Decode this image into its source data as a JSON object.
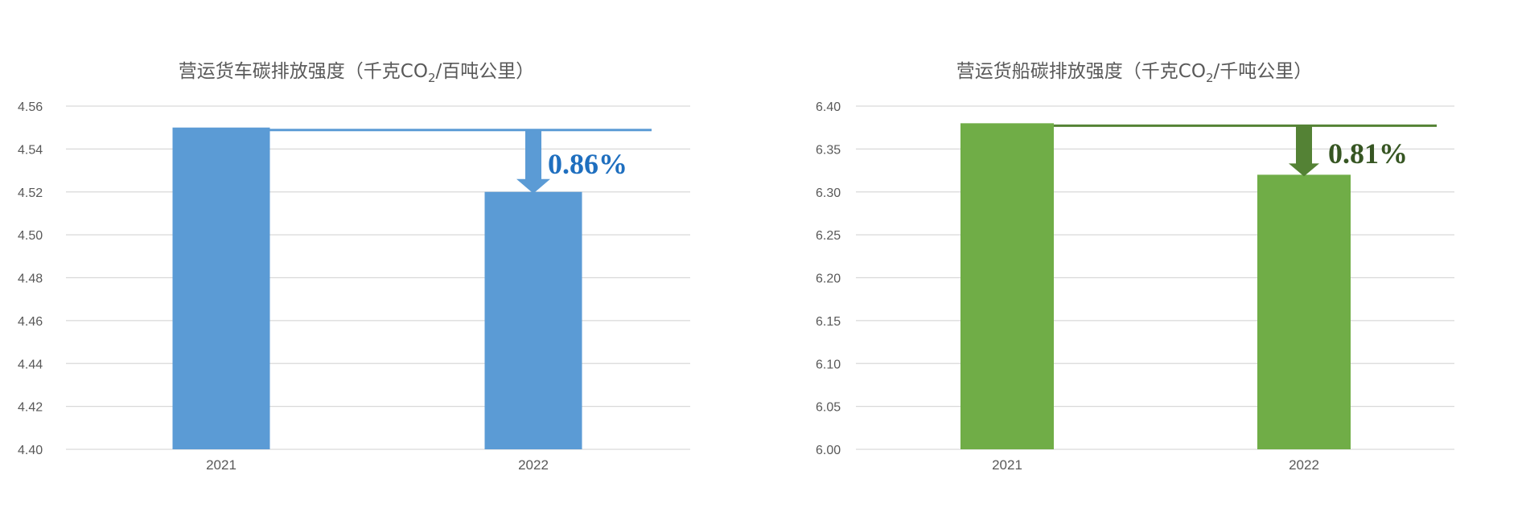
{
  "chart_data": [
    {
      "type": "bar",
      "title": "营运货车碳排放强度（千克CO₂/百吨公里）",
      "title_parts": {
        "pre": "营运货车碳排放强度（千克CO",
        "sub": "2",
        "post": "/百吨公里）"
      },
      "categories": [
        "2021",
        "2022"
      ],
      "values": [
        4.55,
        4.52
      ],
      "ylim": [
        4.4,
        4.56
      ],
      "yticks": [
        "4.40",
        "4.42",
        "4.44",
        "4.46",
        "4.48",
        "4.50",
        "4.52",
        "4.54",
        "4.56"
      ],
      "grid": true,
      "annotation": {
        "text": "0.86%",
        "from": 4.55,
        "to": 4.52
      },
      "colors": {
        "bar": "#5b9bd5",
        "annotation": "#5b9bd5",
        "annotation_text": "#1f6fbf"
      }
    },
    {
      "type": "bar",
      "title": "营运货船碳排放强度（千克CO₂/千吨公里）",
      "title_parts": {
        "pre": "营运货船碳排放强度（千克CO",
        "sub": "2",
        "post": "/千吨公里）"
      },
      "categories": [
        "2021",
        "2022"
      ],
      "values": [
        6.38,
        6.32
      ],
      "ylim": [
        6.0,
        6.4
      ],
      "yticks": [
        "6.00",
        "6.05",
        "6.10",
        "6.15",
        "6.20",
        "6.25",
        "6.30",
        "6.35",
        "6.40"
      ],
      "grid": true,
      "annotation": {
        "text": "0.81%",
        "from": 6.38,
        "to": 6.32
      },
      "colors": {
        "bar": "#70ad47",
        "annotation": "#548235",
        "annotation_text": "#375623"
      }
    }
  ]
}
